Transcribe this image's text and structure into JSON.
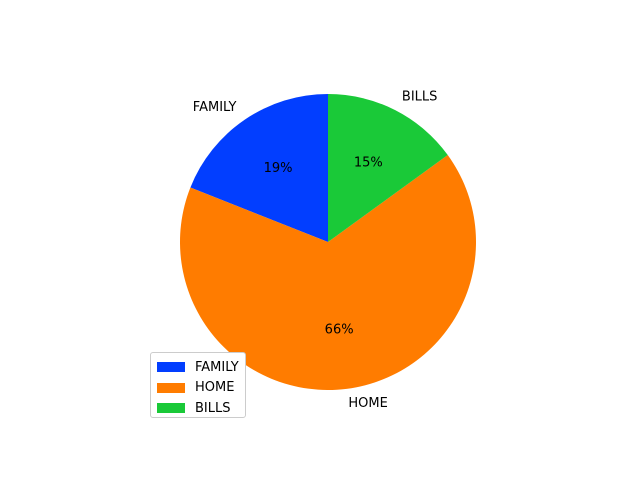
{
  "chart_data": {
    "type": "pie",
    "title": "",
    "start_angle": 90,
    "direction": "counterclockwise",
    "slices": [
      {
        "label": "FAMILY",
        "value": 19,
        "pct_label": "19%",
        "color": "#023eff"
      },
      {
        "label": "HOME",
        "value": 66,
        "pct_label": "66%",
        "color": "#ff7c00"
      },
      {
        "label": "BILLS",
        "value": 15,
        "pct_label": "15%",
        "color": "#1ac938"
      }
    ],
    "legend": {
      "position": "lower-left",
      "entries": [
        "FAMILY",
        "HOME",
        "BILLS"
      ]
    }
  }
}
